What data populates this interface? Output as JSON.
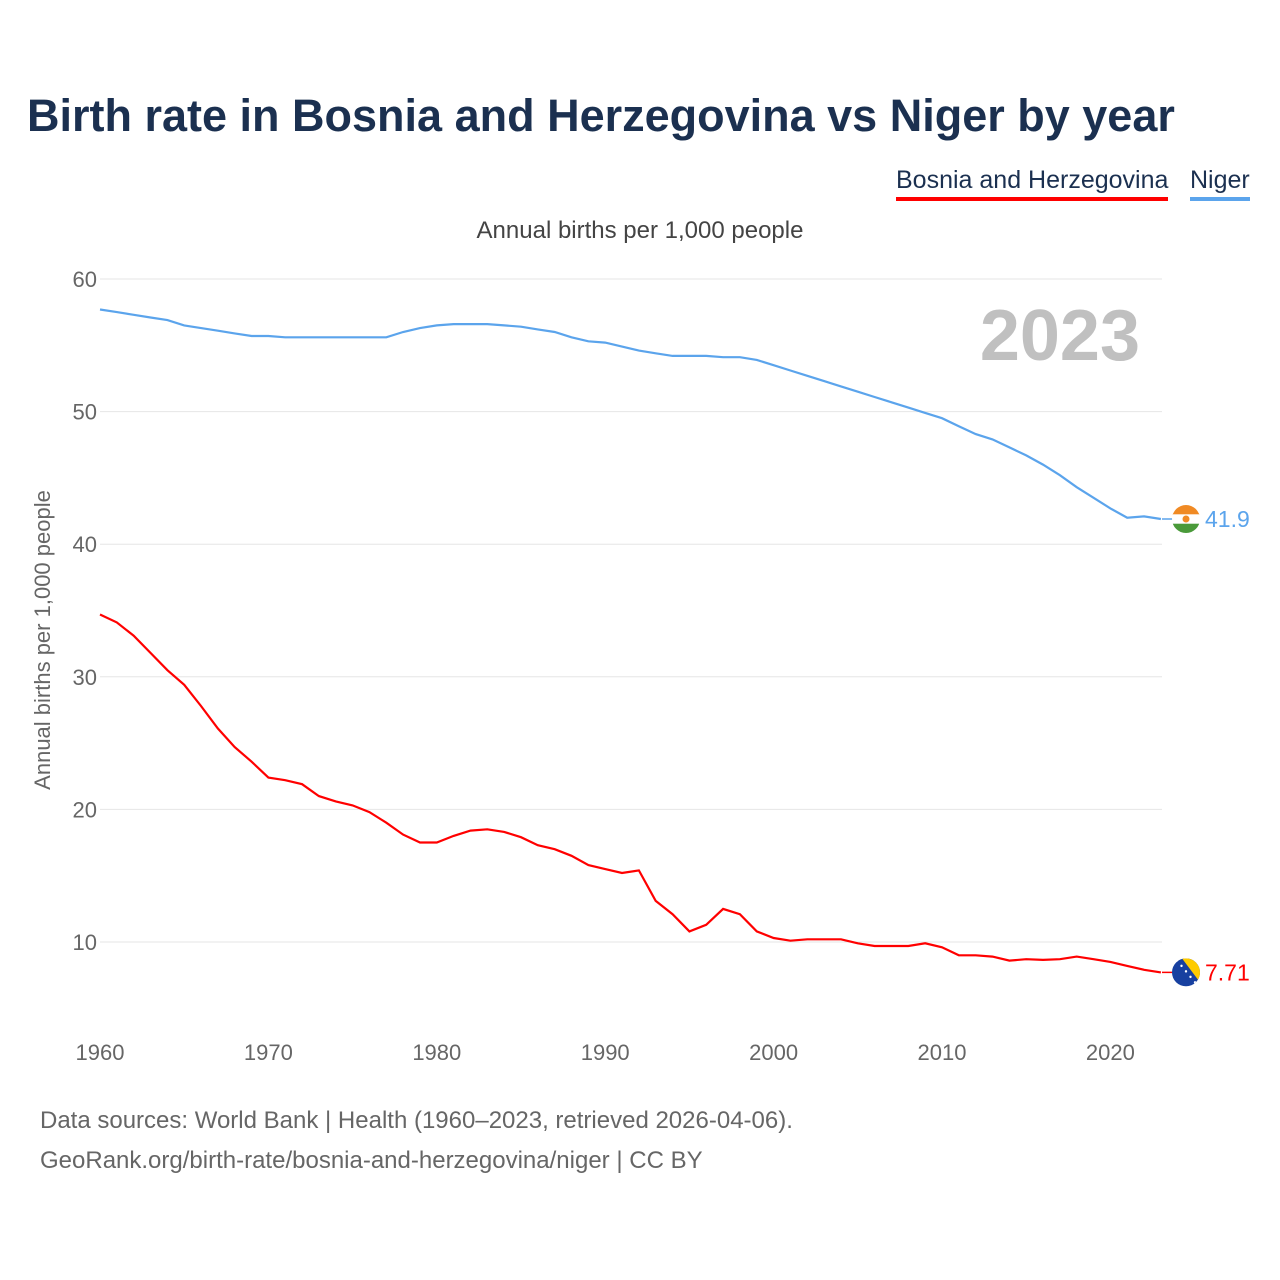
{
  "title": "Birth rate in Bosnia and Herzegovina vs Niger by year",
  "footer": {
    "line1": "Data sources: World Bank | Health (1960–2023, retrieved 2026-04-06).",
    "line2": "GeoRank.org/birth-rate/bosnia-and-herzegovina/niger | CC BY"
  },
  "chart_data": {
    "type": "line",
    "title": "Birth rate in Bosnia and Herzegovina vs Niger by year",
    "subtitle": "Annual births per 1,000 people",
    "ylabel": "Annual births per 1,000 people",
    "xlabel": "",
    "year_overlay": "2023",
    "xlim": [
      1960,
      2023
    ],
    "ylim": [
      4,
      60
    ],
    "yticks": [
      10,
      20,
      30,
      40,
      50,
      60
    ],
    "xticks": [
      1960,
      1970,
      1980,
      1990,
      2000,
      2010,
      2020
    ],
    "grid": true,
    "legend_position": "top-right",
    "x": [
      1960,
      1961,
      1962,
      1963,
      1964,
      1965,
      1966,
      1967,
      1968,
      1969,
      1970,
      1971,
      1972,
      1973,
      1974,
      1975,
      1976,
      1977,
      1978,
      1979,
      1980,
      1981,
      1982,
      1983,
      1984,
      1985,
      1986,
      1987,
      1988,
      1989,
      1990,
      1991,
      1992,
      1993,
      1994,
      1995,
      1996,
      1997,
      1998,
      1999,
      2000,
      2001,
      2002,
      2003,
      2004,
      2005,
      2006,
      2007,
      2008,
      2009,
      2010,
      2011,
      2012,
      2013,
      2014,
      2015,
      2016,
      2017,
      2018,
      2019,
      2020,
      2021,
      2022,
      2023
    ],
    "series": [
      {
        "name": "Bosnia and Herzegovina",
        "color": "#ff0000",
        "end_label": "7.71",
        "flag": "bosnia-flag",
        "values": [
          34.7,
          34.1,
          33.1,
          31.8,
          30.5,
          29.4,
          27.8,
          26.1,
          24.7,
          23.6,
          22.4,
          22.2,
          21.9,
          21.0,
          20.6,
          20.3,
          19.8,
          19.0,
          18.1,
          17.5,
          17.5,
          18.0,
          18.4,
          18.5,
          18.3,
          17.9,
          17.3,
          17.0,
          16.5,
          15.8,
          15.5,
          15.2,
          15.4,
          13.1,
          12.1,
          10.8,
          11.3,
          12.5,
          12.1,
          10.8,
          10.3,
          10.1,
          10.2,
          10.2,
          10.2,
          9.9,
          9.7,
          9.7,
          9.7,
          9.9,
          9.6,
          9.0,
          9.0,
          8.9,
          8.6,
          8.7,
          8.65,
          8.7,
          8.9,
          8.7,
          8.5,
          8.2,
          7.9,
          7.71
        ]
      },
      {
        "name": "Niger",
        "color": "#5ba4ec",
        "end_label": "41.9",
        "flag": "niger-flag",
        "values": [
          57.7,
          57.5,
          57.3,
          57.1,
          56.9,
          56.5,
          56.3,
          56.1,
          55.9,
          55.7,
          55.7,
          55.6,
          55.6,
          55.6,
          55.6,
          55.6,
          55.6,
          55.6,
          56.0,
          56.3,
          56.5,
          56.6,
          56.6,
          56.6,
          56.5,
          56.4,
          56.2,
          56.0,
          55.6,
          55.3,
          55.2,
          54.9,
          54.6,
          54.4,
          54.2,
          54.2,
          54.2,
          54.1,
          54.1,
          53.9,
          53.5,
          53.1,
          52.7,
          52.3,
          51.9,
          51.5,
          51.1,
          50.7,
          50.3,
          49.9,
          49.5,
          48.9,
          48.3,
          47.9,
          47.3,
          46.7,
          46.0,
          45.2,
          44.3,
          43.5,
          42.7,
          42.0,
          42.1,
          41.9
        ]
      }
    ]
  }
}
